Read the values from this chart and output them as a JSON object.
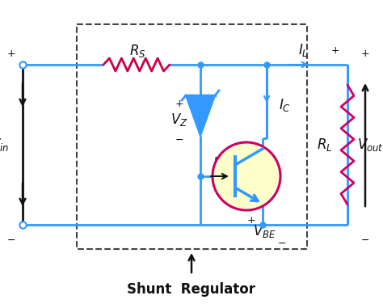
{
  "bg_color": "#ffffff",
  "wire_color": "#3399ff",
  "resistor_color_rs": "#cc0044",
  "resistor_color_rl": "#cc0066",
  "zener_color": "#3399ff",
  "transistor_circle_color": "#ffffcc",
  "transistor_circle_border": "#cc0066",
  "transistor_body_color": "#3399ff",
  "dashed_box_color": "#444444",
  "black_color": "#111111",
  "title": "Shunt  Regulator"
}
